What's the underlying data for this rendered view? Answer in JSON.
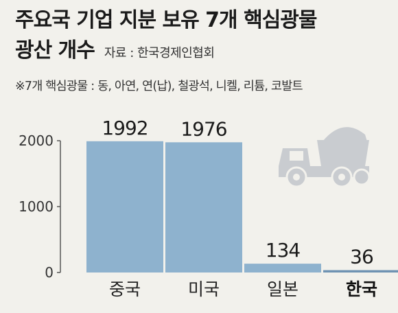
{
  "header": {
    "title_line1": "주요국 기업 지분 보유 7개 핵심광물",
    "title_line2": "광산 개수",
    "source": "자료 : 한국경제인협회",
    "note": "※7개 핵심광물 : 동, 아연, 연(납), 철광석, 니켈, 리튬, 코발트"
  },
  "colors": {
    "bar": "#8eb2ce",
    "highlight_bar": "#6f93b3",
    "icon": "#c9ccd0",
    "background": "#f2f1ec"
  },
  "icon": {
    "name": "dump-truck-icon"
  },
  "chart_data": {
    "type": "bar",
    "title": "주요국 기업 지분 보유 7개 핵심광물 광산 개수",
    "categories": [
      "중국",
      "미국",
      "일본",
      "한국"
    ],
    "values": [
      1992,
      1976,
      134,
      36
    ],
    "value_labels": [
      "1992",
      "1976",
      "134",
      "36"
    ],
    "highlight_category": "한국",
    "ylim": [
      0,
      2000
    ],
    "yticks": [
      0,
      1000,
      2000
    ],
    "ytick_labels": [
      "0",
      "1000",
      "2000"
    ],
    "xlabel": "",
    "ylabel": "",
    "grid": false,
    "legend": "none"
  }
}
